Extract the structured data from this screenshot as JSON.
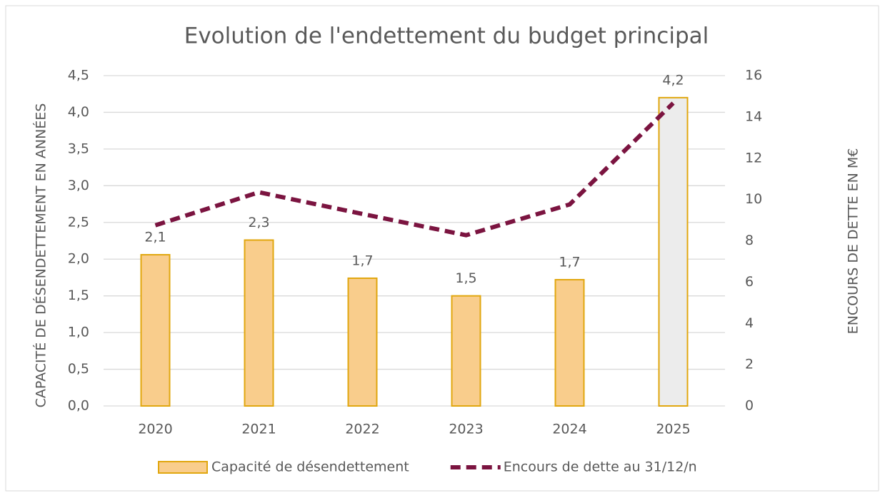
{
  "chart_data": {
    "type": "bar",
    "title": "Evolution de l'endettement du budget principal",
    "y_label": "CAPACITÉ DE DÉSENDETTEMENT EN ANNÉES",
    "y2_label": "ENCOURS DE DETTE EN M€",
    "categories": [
      "2020",
      "2021",
      "2022",
      "2023",
      "2024",
      "2025"
    ],
    "series": [
      {
        "name": "Capacité de désendettement",
        "type": "bar",
        "axis": "y",
        "colors": [
          "#f9cd8c",
          "#f9cd8c",
          "#f9cd8c",
          "#f9cd8c",
          "#f9cd8c",
          "#ececec"
        ],
        "edge_color": "#e1a70f",
        "values": [
          2.06,
          2.26,
          1.74,
          1.5,
          1.72,
          4.2
        ],
        "value_labels": [
          "2,1",
          "2,3",
          "1,7",
          "1,5",
          "1,7",
          "4,2"
        ]
      },
      {
        "name": "Encours de dette au 31/12/n",
        "type": "line",
        "axis": "y2",
        "color": "#7b1440",
        "dashed": true,
        "values": [
          8.75,
          10.35,
          9.3,
          8.27,
          9.76,
          14.67
        ]
      }
    ],
    "ylim": [
      0,
      4.5
    ],
    "yticks": [
      {
        "value": 0,
        "label": "0,0"
      },
      {
        "value": 0.5,
        "label": "0,5"
      },
      {
        "value": 1,
        "label": "1,0"
      },
      {
        "value": 1.5,
        "label": "1,5"
      },
      {
        "value": 2,
        "label": "2,0"
      },
      {
        "value": 2.5,
        "label": "2,5"
      },
      {
        "value": 3,
        "label": "3,0"
      },
      {
        "value": 3.5,
        "label": "3,5"
      },
      {
        "value": 4,
        "label": "4,0"
      },
      {
        "value": 4.5,
        "label": "4,5"
      }
    ],
    "y2lim": [
      0,
      16
    ],
    "y2ticks": [
      0,
      2,
      4,
      6,
      8,
      10,
      12,
      14,
      16
    ],
    "grid": true,
    "legend": "bottom"
  }
}
